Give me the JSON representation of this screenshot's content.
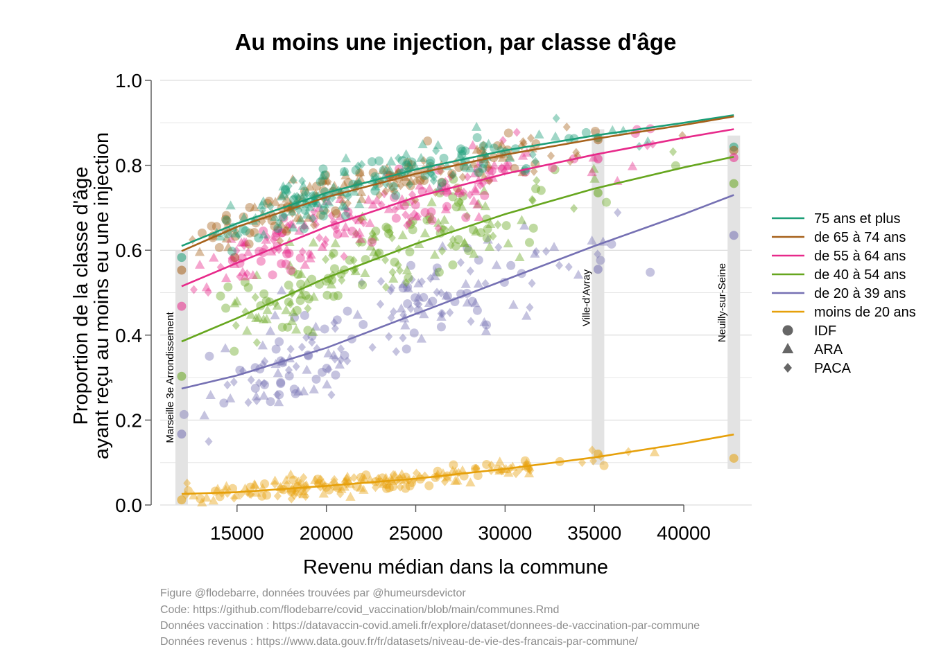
{
  "chart_data": {
    "type": "scatter",
    "title": "Au moins une injection, par classe d'âge",
    "xlabel": "Revenu médian dans la commune",
    "ylabel": [
      "Proportion de la classe d'âge",
      "ayant reçu au moins eu une injection"
    ],
    "xlim": [
      10700,
      43800
    ],
    "ylim": [
      0,
      1
    ],
    "x_ticks": [
      15000,
      20000,
      25000,
      30000,
      35000,
      40000
    ],
    "y_ticks": [
      "0.0",
      "0.2",
      "0.4",
      "0.6",
      "0.8",
      "1.0"
    ],
    "grid": true,
    "legend_position": "right",
    "series": [
      {
        "name": "75 ans et plus",
        "color": "#1b9e77",
        "fit_x": [
          11900,
          15000,
          20000,
          25000,
          30000,
          35000,
          40000,
          42800
        ],
        "fit_y": [
          0.61,
          0.663,
          0.735,
          0.79,
          0.835,
          0.87,
          0.9,
          0.918
        ]
      },
      {
        "name": "de 65 à 74 ans",
        "color": "#a6611a",
        "fit_x": [
          11900,
          15000,
          20000,
          25000,
          30000,
          35000,
          40000,
          42800
        ],
        "fit_y": [
          0.598,
          0.655,
          0.725,
          0.78,
          0.825,
          0.862,
          0.895,
          0.915
        ]
      },
      {
        "name": "de 55 à 64 ans",
        "color": "#e7298a",
        "fit_x": [
          11900,
          15000,
          20000,
          25000,
          30000,
          35000,
          40000,
          42800
        ],
        "fit_y": [
          0.515,
          0.57,
          0.655,
          0.725,
          0.78,
          0.825,
          0.865,
          0.885
        ]
      },
      {
        "name": "de 40 à 54 ans",
        "color": "#66a61e",
        "fit_x": [
          11900,
          15000,
          20000,
          25000,
          30000,
          35000,
          40000,
          42800
        ],
        "fit_y": [
          0.385,
          0.44,
          0.535,
          0.615,
          0.685,
          0.745,
          0.795,
          0.82
        ]
      },
      {
        "name": "de 20 à 39 ans",
        "color": "#7570b3",
        "fit_x": [
          11900,
          15000,
          20000,
          25000,
          30000,
          35000,
          40000,
          42800
        ],
        "fit_y": [
          0.274,
          0.305,
          0.37,
          0.45,
          0.53,
          0.61,
          0.685,
          0.73
        ]
      },
      {
        "name": "moins de 20 ans",
        "color": "#e6a00a",
        "fit_x": [
          11900,
          15000,
          20000,
          25000,
          30000,
          35000,
          40000,
          42800
        ],
        "fit_y": [
          0.026,
          0.03,
          0.045,
          0.062,
          0.085,
          0.112,
          0.145,
          0.166
        ]
      }
    ],
    "shapes": [
      {
        "name": "IDF",
        "marker": "circle"
      },
      {
        "name": "ARA",
        "marker": "triangle"
      },
      {
        "name": "PACA",
        "marker": "diamond"
      }
    ],
    "highlighted_communes": [
      {
        "name": "Marseille 3e Arrondissement",
        "x": 11900,
        "y_range": [
          0.0,
          0.6
        ],
        "points": [
          {
            "y": 0.583,
            "c": 0
          },
          {
            "y": 0.553,
            "c": 1
          },
          {
            "y": 0.468,
            "c": 2
          },
          {
            "y": 0.303,
            "c": 3
          },
          {
            "y": 0.167,
            "c": 4
          },
          {
            "y": 0.012,
            "c": 5
          }
        ]
      },
      {
        "name": "Ville-d'Avray",
        "x": 35200,
        "y_range": [
          0.095,
          0.885
        ],
        "points": [
          {
            "y": 0.865,
            "c": 0
          },
          {
            "y": 0.86,
            "c": 1
          },
          {
            "y": 0.815,
            "c": 2
          },
          {
            "y": 0.735,
            "c": 3
          },
          {
            "y": 0.555,
            "c": 4
          },
          {
            "y": 0.12,
            "c": 5
          }
        ]
      },
      {
        "name": "Neuilly-sur-Seine",
        "x": 42800,
        "y_range": [
          0.085,
          0.87
        ],
        "points": [
          {
            "y": 0.843,
            "c": 0
          },
          {
            "y": 0.835,
            "c": 1
          },
          {
            "y": 0.818,
            "c": 2
          },
          {
            "y": 0.757,
            "c": 3
          },
          {
            "y": 0.635,
            "c": 4
          },
          {
            "y": 0.11,
            "c": 5
          }
        ]
      }
    ],
    "scatter_model": {
      "x_density": [
        [
          12000,
          14000,
          0.25
        ],
        [
          14000,
          17000,
          1.0
        ],
        [
          17000,
          21000,
          1.6
        ],
        [
          21000,
          25000,
          1.3
        ],
        [
          25000,
          29000,
          1.0
        ],
        [
          29000,
          32000,
          0.6
        ],
        [
          32000,
          36000,
          0.15
        ],
        [
          36000,
          40000,
          0.1
        ]
      ],
      "spread": [
        0.028,
        0.028,
        0.035,
        0.05,
        0.065,
        0.012
      ],
      "points_per_series": 180
    }
  },
  "captions": [
    "Figure @flodebarre, données trouvées par @humeursdevictor",
    "Code: https://github.com/flodebarre/covid_vaccination/blob/main/communes.Rmd",
    "Données vaccination : https://datavaccin-covid.ameli.fr/explore/dataset/donnees-de-vaccination-par-commune",
    "Données revenus : https://www.data.gouv.fr/fr/datasets/niveau-de-vie-des-francais-par-commune/"
  ]
}
